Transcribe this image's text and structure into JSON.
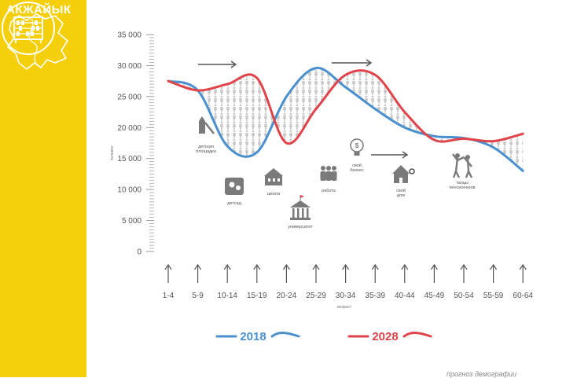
{
  "region": {
    "name": "АКЖАЙЫК"
  },
  "icons": {
    "map": "region-map-icon",
    "abacus": "abacus-icon"
  },
  "colors": {
    "yellow": "#f6cf0b",
    "series_2018": "#4a90cf",
    "series_2028": "#e04349",
    "people": "#c9c9c9"
  },
  "source_text": "прогноз демографии",
  "chart_data": {
    "type": "line",
    "ylabel": "человек",
    "xlabel": "возраст",
    "ylim": [
      0,
      35000
    ],
    "yticks": [
      0,
      5000,
      10000,
      15000,
      20000,
      25000,
      30000,
      35000
    ],
    "ytick_labels": [
      "0",
      "5 000",
      "10 000",
      "15 000",
      "20 000",
      "25 000",
      "30 000",
      "35 000"
    ],
    "categories": [
      "1-4",
      "5-9",
      "10-14",
      "15-19",
      "20-24",
      "25-29",
      "30-34",
      "35-39",
      "40-44",
      "45-49",
      "50-54",
      "55-59",
      "60-64"
    ],
    "series": [
      {
        "name": "2018",
        "color": "#4a90cf",
        "values": [
          27500,
          26000,
          17000,
          16000,
          25000,
          29600,
          26500,
          23000,
          20000,
          18600,
          18300,
          16800,
          13000
        ]
      },
      {
        "name": "2028",
        "color": "#e04349",
        "values": [
          27500,
          26000,
          27000,
          28000,
          17500,
          23000,
          28500,
          28500,
          22500,
          18000,
          18200,
          17800,
          19000
        ]
      }
    ],
    "legend_placement": "bottom",
    "grid": false
  },
  "annotations": [
    {
      "id": "playground",
      "lines": [
        "детская",
        "площадка"
      ]
    },
    {
      "id": "kindergarten",
      "lines": [
        "детсад"
      ]
    },
    {
      "id": "school",
      "lines": [
        "школа"
      ]
    },
    {
      "id": "university",
      "lines": [
        "университет"
      ]
    },
    {
      "id": "work",
      "lines": [
        "работа"
      ]
    },
    {
      "id": "business",
      "lines": [
        "свой",
        "бизнес"
      ]
    },
    {
      "id": "house",
      "lines": [
        "свой",
        "дом"
      ]
    },
    {
      "id": "dance",
      "lines": [
        "танцы",
        "пенсионеров"
      ]
    }
  ]
}
